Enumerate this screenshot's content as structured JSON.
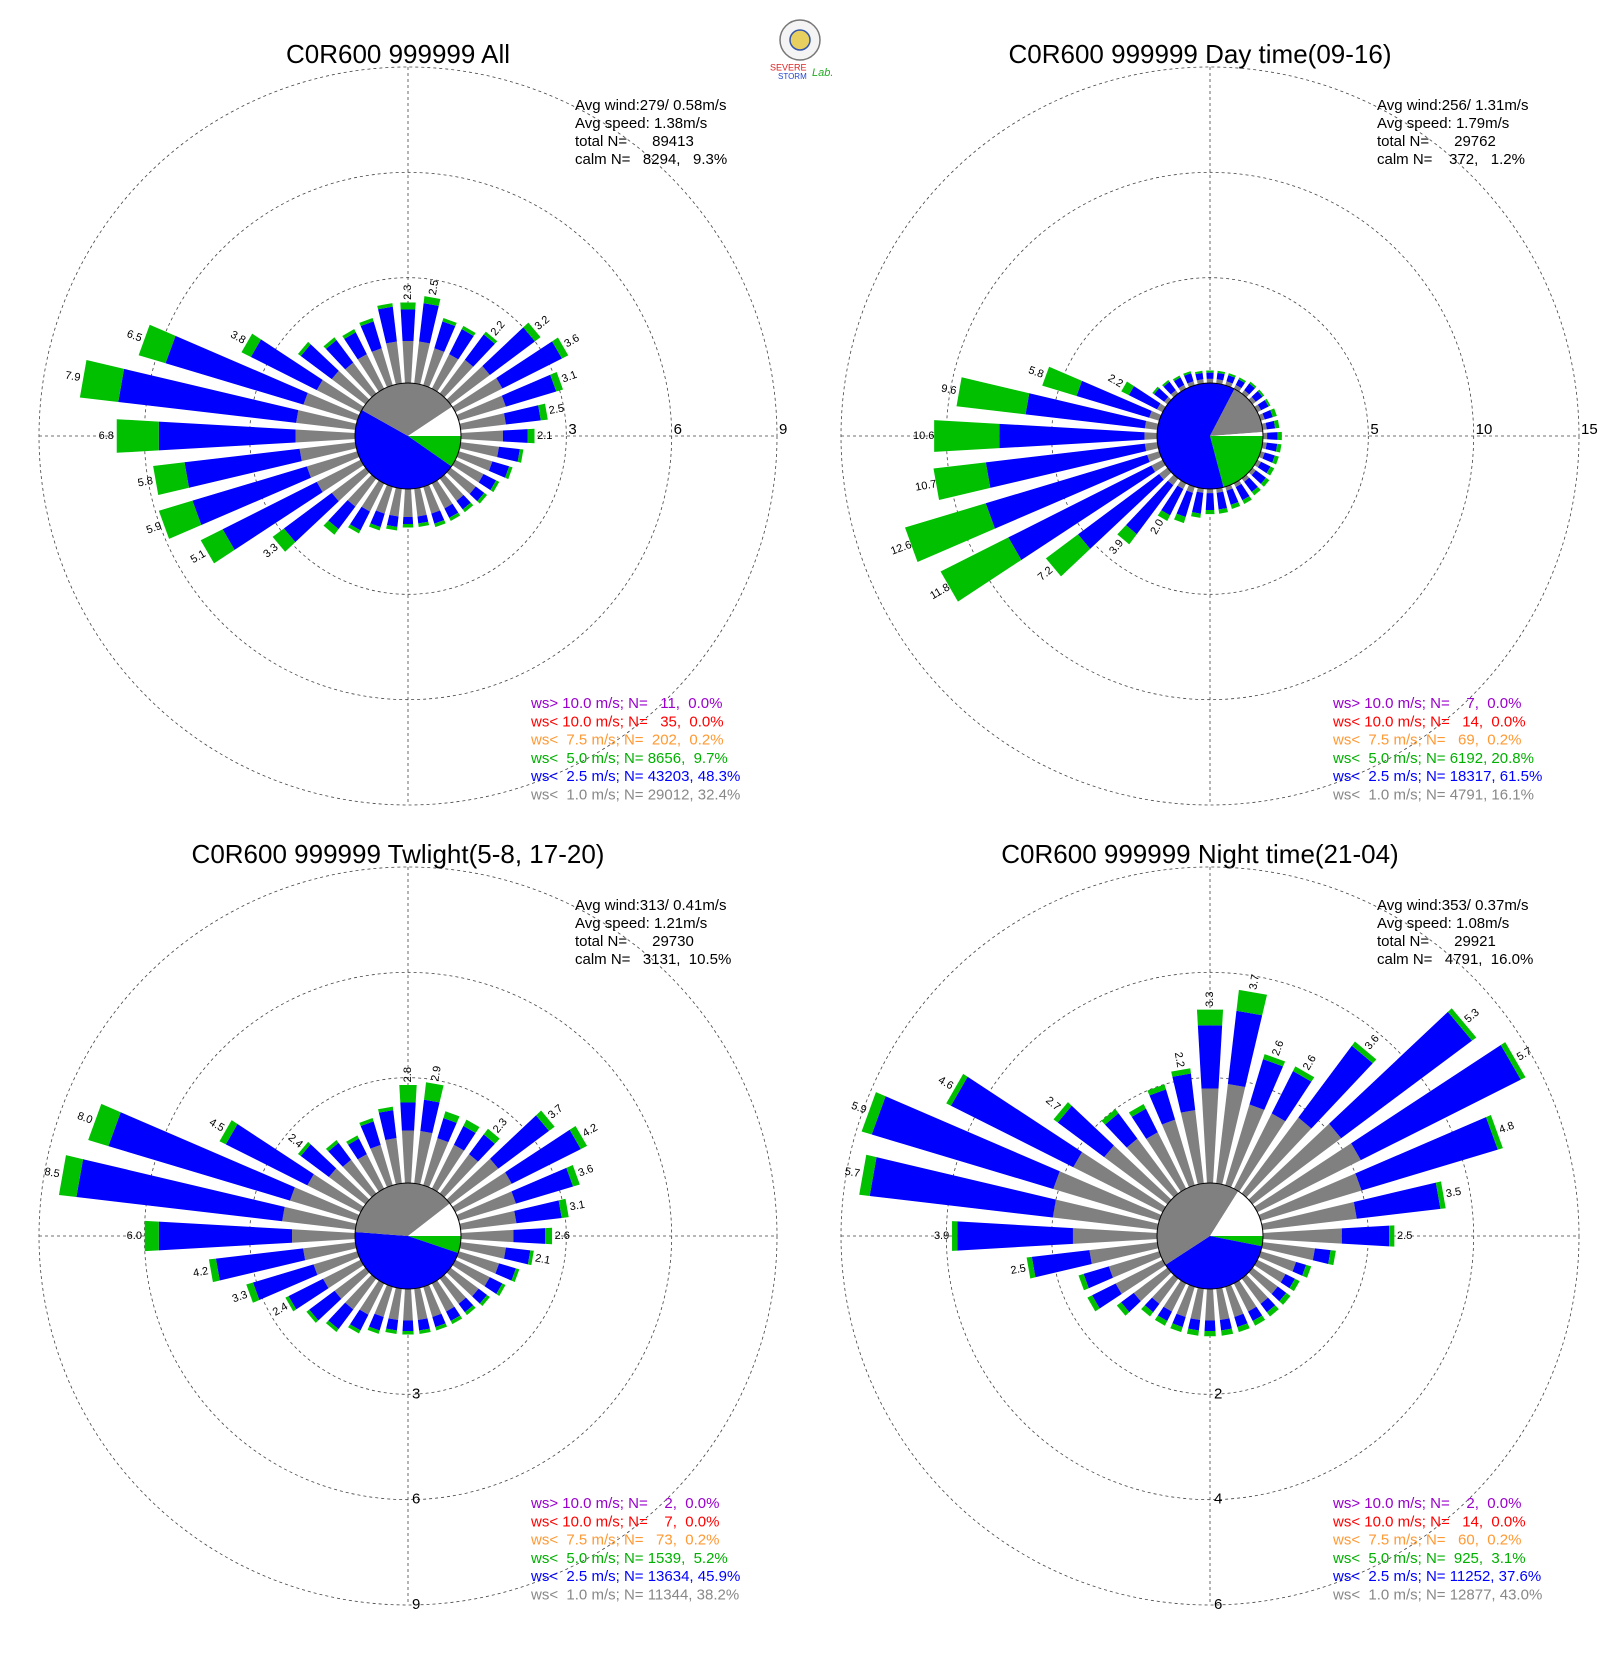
{
  "logo_text": [
    "SEVERE",
    "STORM",
    "Lab."
  ],
  "chart_data": [
    {
      "type": "windrose",
      "title": "C0R600 999999 All",
      "stats": [
        "Avg wind:279/ 0.58m/s",
        "Avg speed: 1.38m/s",
        "total N=      89413",
        "calm N=   8294,   9.3%"
      ],
      "legend": [
        {
          "text": "ws> 10.0 m/s; N=   11,  0.0%",
          "color": "#9900cc"
        },
        {
          "text": "ws< 10.0 m/s; N=   35,  0.0%",
          "color": "#ff0000"
        },
        {
          "text": "ws<  7.5 m/s; N=  202,  0.2%",
          "color": "#ff9933"
        },
        {
          "text": "ws<  5.0 m/s; N= 8656,  9.7%",
          "color": "#00b000"
        },
        {
          "text": "ws<  2.5 m/s; N= 43203, 48.3%",
          "color": "#0000ff"
        },
        {
          "text": "ws<  1.0 m/s; N= 29012, 32.4%",
          "color": "#888888"
        }
      ],
      "ylim": [
        0,
        9
      ],
      "yticks": [
        3,
        6,
        9
      ],
      "tick_axis": "east",
      "directions": [
        0,
        10,
        20,
        30,
        40,
        50,
        60,
        70,
        80,
        90,
        100,
        110,
        120,
        130,
        140,
        150,
        160,
        170,
        180,
        190,
        200,
        210,
        220,
        230,
        240,
        250,
        260,
        270,
        280,
        290,
        300,
        310,
        320,
        330,
        340,
        350
      ],
      "series": [
        {
          "color": "#808080",
          "values": [
            1.2,
            1.2,
            1.1,
            1.1,
            1.2,
            1.4,
            1.5,
            1.4,
            1.3,
            1.2,
            1.1,
            1.0,
            0.9,
            0.9,
            0.8,
            0.8,
            0.8,
            0.8,
            0.8,
            0.8,
            0.8,
            0.9,
            1.0,
            1.2,
            1.4,
            1.5,
            1.6,
            1.7,
            1.7,
            1.6,
            1.4,
            1.2,
            1.1,
            1.1,
            1.1,
            1.2
          ]
        },
        {
          "color": "#0000ff",
          "values": [
            0.9,
            1.1,
            0.8,
            0.8,
            0.9,
            1.6,
            1.9,
            1.5,
            1.0,
            0.7,
            0.6,
            0.5,
            0.4,
            0.3,
            0.3,
            0.3,
            0.3,
            0.2,
            0.2,
            0.3,
            0.4,
            0.6,
            0.8,
            1.7,
            3.0,
            3.4,
            3.3,
            3.9,
            5.1,
            4.1,
            2.1,
            1.1,
            0.8,
            0.7,
            0.8,
            1.0
          ]
        },
        {
          "color": "#00c000",
          "values": [
            0.2,
            0.2,
            0.1,
            0.1,
            0.1,
            0.2,
            0.2,
            0.2,
            0.2,
            0.2,
            0.1,
            0.1,
            0.1,
            0.1,
            0.1,
            0.1,
            0.1,
            0.1,
            0.1,
            0.1,
            0.1,
            0.1,
            0.2,
            0.4,
            0.7,
            1.0,
            0.9,
            1.2,
            1.1,
            0.8,
            0.3,
            0.1,
            0.1,
            0.1,
            0.1,
            0.1
          ]
        }
      ],
      "bar_labels": [
        "2.3",
        "2.5",
        null,
        null,
        "2.2",
        "3.2",
        "3.6",
        "3.1",
        "2.5",
        "2.1",
        null,
        null,
        null,
        null,
        null,
        null,
        null,
        null,
        null,
        null,
        null,
        null,
        null,
        "3.3",
        "5.1",
        "5.9",
        "5.8",
        "6.8",
        "7.9",
        "6.5",
        "3.8",
        null,
        null,
        null,
        null,
        null
      ],
      "calm_pie": {
        "values": [
          9.7,
          48.3,
          32.4,
          9.3
        ],
        "colors": [
          "#00c000",
          "#0000ff",
          "#808080",
          "#ffffff"
        ]
      }
    },
    {
      "type": "windrose",
      "title": "C0R600 999999 Day time(09-16)",
      "stats": [
        "Avg wind:256/ 1.31m/s",
        "Avg speed: 1.79m/s",
        "total N=      29762",
        "calm N=    372,   1.2%"
      ],
      "legend": [
        {
          "text": "ws> 10.0 m/s; N=    7,  0.0%",
          "color": "#9900cc"
        },
        {
          "text": "ws< 10.0 m/s; N=   14,  0.0%",
          "color": "#ff0000"
        },
        {
          "text": "ws<  7.5 m/s; N=   69,  0.2%",
          "color": "#ff9933"
        },
        {
          "text": "ws<  5.0 m/s; N= 6192, 20.8%",
          "color": "#00b000"
        },
        {
          "text": "ws<  2.5 m/s; N= 18317, 61.5%",
          "color": "#0000ff"
        },
        {
          "text": "ws<  1.0 m/s; N= 4791, 16.1%",
          "color": "#888888"
        }
      ],
      "ylim": [
        0,
        15
      ],
      "yticks": [
        5,
        10,
        15
      ],
      "tick_axis": "east",
      "directions": [
        0,
        10,
        20,
        30,
        40,
        50,
        60,
        70,
        80,
        90,
        100,
        110,
        120,
        130,
        140,
        150,
        160,
        170,
        180,
        190,
        200,
        210,
        220,
        230,
        240,
        250,
        260,
        270,
        280,
        290,
        300,
        310,
        320,
        330,
        340,
        350
      ],
      "series": [
        {
          "color": "#808080",
          "values": [
            0.2,
            0.2,
            0.2,
            0.2,
            0.2,
            0.2,
            0.2,
            0.2,
            0.2,
            0.2,
            0.2,
            0.2,
            0.2,
            0.2,
            0.2,
            0.2,
            0.2,
            0.2,
            0.2,
            0.2,
            0.3,
            0.3,
            0.4,
            0.5,
            0.6,
            0.6,
            0.6,
            0.6,
            0.6,
            0.5,
            0.3,
            0.2,
            0.2,
            0.2,
            0.2,
            0.2
          ]
        },
        {
          "color": "#0000ff",
          "values": [
            0.3,
            0.3,
            0.3,
            0.3,
            0.4,
            0.4,
            0.4,
            0.4,
            0.4,
            0.5,
            0.5,
            0.5,
            0.5,
            0.6,
            0.6,
            0.7,
            0.7,
            0.8,
            0.8,
            1.0,
            1.2,
            1.4,
            2.9,
            4.8,
            7.6,
            8.0,
            7.6,
            6.9,
            5.7,
            3.6,
            1.5,
            0.6,
            0.5,
            0.4,
            0.4,
            0.3
          ]
        },
        {
          "color": "#00c000",
          "values": [
            0.1,
            0.1,
            0.1,
            0.1,
            0.1,
            0.1,
            0.1,
            0.2,
            0.2,
            0.2,
            0.2,
            0.2,
            0.2,
            0.2,
            0.2,
            0.2,
            0.2,
            0.2,
            0.2,
            0.2,
            0.3,
            0.3,
            0.6,
            1.9,
            3.6,
            4.0,
            2.5,
            3.1,
            3.3,
            1.7,
            0.4,
            0.1,
            0.1,
            0.1,
            0.1,
            0.1
          ]
        }
      ],
      "bar_labels": [
        null,
        null,
        null,
        null,
        null,
        null,
        null,
        null,
        null,
        null,
        null,
        null,
        null,
        null,
        null,
        null,
        null,
        null,
        null,
        null,
        null,
        "2.0",
        "3.9",
        "7.2",
        "11.8",
        "12.6",
        "10.7",
        "10.6",
        "9.6",
        "5.8",
        "2.2",
        null,
        null,
        null,
        null,
        null
      ],
      "calm_pie": {
        "values": [
          20.8,
          61.5,
          16.1,
          1.2
        ],
        "colors": [
          "#00c000",
          "#0000ff",
          "#808080",
          "#ffffff"
        ]
      }
    },
    {
      "type": "windrose",
      "title": "C0R600 999999 Twlight(5-8, 17-20)",
      "stats": [
        "Avg wind:313/ 0.41m/s",
        "Avg speed: 1.21m/s",
        "total N=      29730",
        "calm N=   3131,  10.5%"
      ],
      "legend": [
        {
          "text": "ws> 10.0 m/s; N=    2,  0.0%",
          "color": "#9900cc"
        },
        {
          "text": "ws< 10.0 m/s; N=    7,  0.0%",
          "color": "#ff0000"
        },
        {
          "text": "ws<  7.5 m/s; N=   73,  0.2%",
          "color": "#ff9933"
        },
        {
          "text": "ws<  5.0 m/s; N= 1539,  5.2%",
          "color": "#00b000"
        },
        {
          "text": "ws<  2.5 m/s; N= 13634, 45.9%",
          "color": "#0000ff"
        },
        {
          "text": "ws<  1.0 m/s; N= 11344, 38.2%",
          "color": "#888888"
        }
      ],
      "ylim": [
        0,
        9
      ],
      "yticks": [
        3,
        6,
        9
      ],
      "tick_axis": "south",
      "directions": [
        0,
        10,
        20,
        30,
        40,
        50,
        60,
        70,
        80,
        90,
        100,
        110,
        120,
        130,
        140,
        150,
        160,
        170,
        180,
        190,
        200,
        210,
        220,
        230,
        240,
        250,
        260,
        270,
        280,
        290,
        300,
        310,
        320,
        330,
        340,
        350
      ],
      "series": [
        {
          "color": "#808080",
          "values": [
            1.5,
            1.5,
            1.4,
            1.4,
            1.4,
            1.7,
            1.8,
            1.7,
            1.6,
            1.5,
            1.3,
            1.2,
            1.1,
            1.0,
            0.9,
            0.9,
            0.9,
            0.9,
            0.9,
            0.9,
            0.9,
            1.0,
            1.1,
            1.1,
            1.2,
            1.3,
            1.5,
            1.8,
            2.1,
            2.0,
            1.7,
            1.3,
            1.2,
            1.1,
            1.2,
            1.3
          ]
        },
        {
          "color": "#0000ff",
          "values": [
            0.8,
            0.9,
            0.6,
            0.6,
            0.7,
            1.8,
            2.2,
            1.7,
            1.3,
            0.9,
            0.7,
            0.5,
            0.4,
            0.3,
            0.3,
            0.3,
            0.3,
            0.3,
            0.3,
            0.3,
            0.4,
            0.5,
            0.7,
            0.9,
            1.1,
            1.8,
            2.5,
            3.8,
            5.9,
            5.4,
            2.6,
            1.0,
            0.6,
            0.5,
            0.7,
            0.8
          ]
        },
        {
          "color": "#00c000",
          "values": [
            0.5,
            0.5,
            0.2,
            0.2,
            0.2,
            0.2,
            0.2,
            0.2,
            0.2,
            0.2,
            0.1,
            0.1,
            0.1,
            0.1,
            0.1,
            0.1,
            0.1,
            0.1,
            0.1,
            0.1,
            0.1,
            0.1,
            0.1,
            0.1,
            0.1,
            0.2,
            0.2,
            0.4,
            0.5,
            0.6,
            0.2,
            0.1,
            0.1,
            0.1,
            0.1,
            0.1
          ]
        }
      ],
      "bar_labels": [
        "2.8",
        "2.9",
        null,
        null,
        "2.3",
        "3.7",
        "4.2",
        "3.6",
        "3.1",
        "2.6",
        "2.1",
        null,
        null,
        null,
        null,
        null,
        null,
        null,
        null,
        null,
        null,
        null,
        null,
        null,
        "2.4",
        "3.3",
        "4.2",
        "6.0",
        "8.5",
        "8.0",
        "4.5",
        "2.4",
        null,
        null,
        null,
        null
      ],
      "calm_pie": {
        "values": [
          5.2,
          45.9,
          38.2,
          10.5
        ],
        "colors": [
          "#00c000",
          "#0000ff",
          "#808080",
          "#ffffff"
        ]
      }
    },
    {
      "type": "windrose",
      "title": "C0R600 999999 Night time(21-04)",
      "stats": [
        "Avg wind:353/ 0.37m/s",
        "Avg speed: 1.08m/s",
        "total N=      29921",
        "calm N=   4791,  16.0%"
      ],
      "legend": [
        {
          "text": "ws> 10.0 m/s; N=    2,  0.0%",
          "color": "#9900cc"
        },
        {
          "text": "ws< 10.0 m/s; N=   14,  0.0%",
          "color": "#ff0000"
        },
        {
          "text": "ws<  7.5 m/s; N=   60,  0.2%",
          "color": "#ff9933"
        },
        {
          "text": "ws<  5.0 m/s; N=  925,  3.1%",
          "color": "#00b000"
        },
        {
          "text": "ws<  2.5 m/s; N= 11252, 37.6%",
          "color": "#0000ff"
        },
        {
          "text": "ws<  1.0 m/s; N= 12877, 43.0%",
          "color": "#888888"
        }
      ],
      "ylim": [
        0,
        6
      ],
      "yticks": [
        2,
        4,
        6
      ],
      "tick_axis": "south",
      "directions": [
        0,
        10,
        20,
        30,
        40,
        50,
        60,
        70,
        80,
        90,
        100,
        110,
        120,
        130,
        140,
        150,
        160,
        170,
        180,
        190,
        200,
        210,
        220,
        230,
        240,
        250,
        260,
        270,
        280,
        290,
        300,
        310,
        320,
        330,
        340,
        350
      ],
      "series": [
        {
          "color": "#808080",
          "values": [
            1.8,
            1.9,
            1.6,
            1.6,
            1.8,
            2.1,
            2.2,
            2.0,
            1.8,
            1.5,
            1.0,
            0.7,
            0.6,
            0.6,
            0.6,
            0.6,
            0.6,
            0.6,
            0.6,
            0.6,
            0.6,
            0.6,
            0.6,
            0.8,
            1.0,
            1.0,
            1.3,
            1.6,
            2.0,
            2.1,
            1.9,
            1.5,
            1.3,
            1.2,
            1.3,
            1.4
          ]
        },
        {
          "color": "#0000ff",
          "values": [
            1.2,
            1.4,
            0.9,
            0.9,
            1.7,
            3.1,
            3.4,
            2.7,
            1.6,
            0.9,
            0.3,
            0.2,
            0.2,
            0.2,
            0.2,
            0.2,
            0.2,
            0.2,
            0.2,
            0.2,
            0.2,
            0.2,
            0.2,
            0.3,
            0.5,
            0.5,
            1.1,
            2.2,
            3.5,
            3.6,
            2.6,
            1.1,
            0.6,
            0.5,
            0.6,
            0.7
          ]
        },
        {
          "color": "#00c000",
          "values": [
            0.3,
            0.4,
            0.1,
            0.1,
            0.1,
            0.1,
            0.1,
            0.1,
            0.1,
            0.1,
            0.1,
            0.1,
            0.1,
            0.1,
            0.1,
            0.1,
            0.1,
            0.1,
            0.1,
            0.1,
            0.1,
            0.1,
            0.1,
            0.1,
            0.1,
            0.1,
            0.1,
            0.1,
            0.2,
            0.2,
            0.1,
            0.1,
            0.1,
            0.1,
            0.1,
            0.1
          ]
        }
      ],
      "bar_labels": [
        "3.3",
        "3.7",
        "2.6",
        "2.6",
        "3.6",
        "5.3",
        "5.7",
        "4.8",
        "3.5",
        "2.5",
        null,
        null,
        null,
        null,
        null,
        null,
        null,
        null,
        null,
        null,
        null,
        null,
        null,
        null,
        null,
        null,
        "2.5",
        "3.9",
        "5.7",
        "5.9",
        "4.6",
        "2.7",
        null,
        null,
        null,
        "2.2"
      ],
      "calm_pie": {
        "values": [
          3.1,
          37.6,
          43.0,
          16.0
        ],
        "colors": [
          "#00c000",
          "#0000ff",
          "#808080",
          "#ffffff"
        ]
      }
    }
  ]
}
